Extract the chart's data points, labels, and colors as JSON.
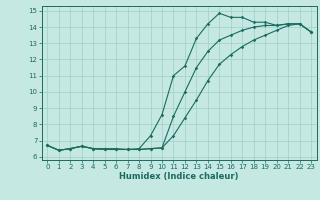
{
  "xlabel": "Humidex (Indice chaleur)",
  "xlim": [
    -0.5,
    23.5
  ],
  "ylim": [
    5.8,
    15.3
  ],
  "xticks": [
    0,
    1,
    2,
    3,
    4,
    5,
    6,
    7,
    8,
    9,
    10,
    11,
    12,
    13,
    14,
    15,
    16,
    17,
    18,
    19,
    20,
    21,
    22,
    23
  ],
  "yticks": [
    6,
    7,
    8,
    9,
    10,
    11,
    12,
    13,
    14,
    15
  ],
  "bg_color": "#c5e8e2",
  "line_color": "#1a6b60",
  "line1_x": [
    0,
    1,
    2,
    3,
    4,
    5,
    6,
    7,
    8,
    9,
    10,
    11,
    12,
    13,
    14,
    15,
    16,
    17,
    18,
    19,
    20,
    21,
    22,
    23
  ],
  "line1_y": [
    6.7,
    6.4,
    6.5,
    6.65,
    6.5,
    6.5,
    6.5,
    6.45,
    6.5,
    7.3,
    8.6,
    11.0,
    11.6,
    13.3,
    14.2,
    14.85,
    14.6,
    14.6,
    14.3,
    14.3,
    14.1,
    14.2,
    14.2,
    13.7
  ],
  "line2_x": [
    0,
    1,
    2,
    3,
    4,
    5,
    6,
    7,
    8,
    9,
    10,
    11,
    12,
    13,
    14,
    15,
    16,
    17,
    18,
    19,
    20,
    21,
    22,
    23
  ],
  "line2_y": [
    6.7,
    6.4,
    6.5,
    6.65,
    6.5,
    6.45,
    6.45,
    6.45,
    6.45,
    6.5,
    6.55,
    7.3,
    8.4,
    9.5,
    10.7,
    11.7,
    12.3,
    12.8,
    13.2,
    13.5,
    13.8,
    14.1,
    14.2,
    13.7
  ],
  "line3_x": [
    0,
    1,
    2,
    3,
    4,
    5,
    6,
    7,
    8,
    9,
    10,
    11,
    12,
    13,
    14,
    15,
    16,
    17,
    18,
    19,
    20,
    21,
    22,
    23
  ],
  "line3_y": [
    6.7,
    6.4,
    6.5,
    6.65,
    6.5,
    6.45,
    6.45,
    6.45,
    6.45,
    6.5,
    6.55,
    8.5,
    10.0,
    11.5,
    12.5,
    13.2,
    13.5,
    13.8,
    14.0,
    14.1,
    14.1,
    14.2,
    14.2,
    13.7
  ]
}
